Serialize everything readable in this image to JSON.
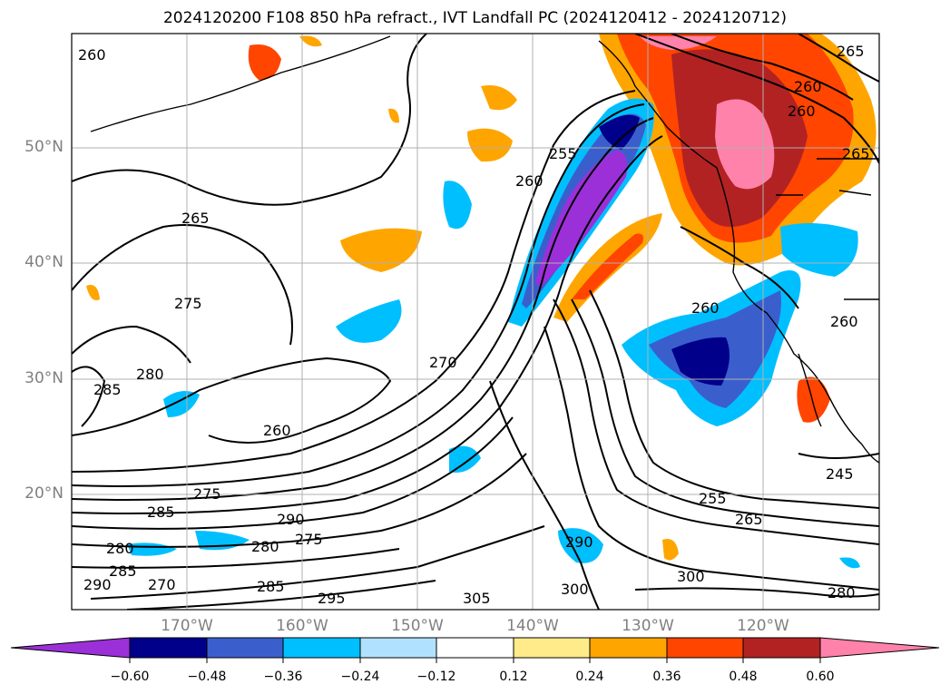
{
  "title": "2024120200 F108 850 hPa refract., IVT Landfall PC (2024120412 - 2024120712)",
  "lat_labels": [
    "50°N",
    "40°N",
    "30°N",
    "20°N"
  ],
  "lon_labels": [
    "170°W",
    "160°W",
    "150°W",
    "140°W",
    "130°W",
    "120°W"
  ],
  "colorbar": {
    "levels": [
      "−0.60",
      "−0.48",
      "−0.36",
      "−0.24",
      "−0.12",
      "0.12",
      "0.24",
      "0.36",
      "0.48",
      "0.60"
    ],
    "colors": [
      "#9b30d9",
      "#00008b",
      "#3a5fcd",
      "#00bfff",
      "#b0e2ff",
      "#ffffff",
      "#ffeb8a",
      "#ffa500",
      "#ff4500",
      "#b22222",
      "#ff82ab"
    ]
  },
  "contour_labels": [
    "260",
    "265",
    "275",
    "280",
    "285",
    "260",
    "255",
    "260",
    "270",
    "275",
    "285",
    "290",
    "280",
    "275",
    "280",
    "285",
    "290",
    "270",
    "285",
    "295",
    "305",
    "300",
    "290",
    "300",
    "280",
    "245",
    "255",
    "265",
    "260",
    "260",
    "265",
    "265",
    "260",
    "260"
  ],
  "colors": {
    "frame": "#000000",
    "grid": "#b0b0b0",
    "axis_text": "#808080"
  }
}
